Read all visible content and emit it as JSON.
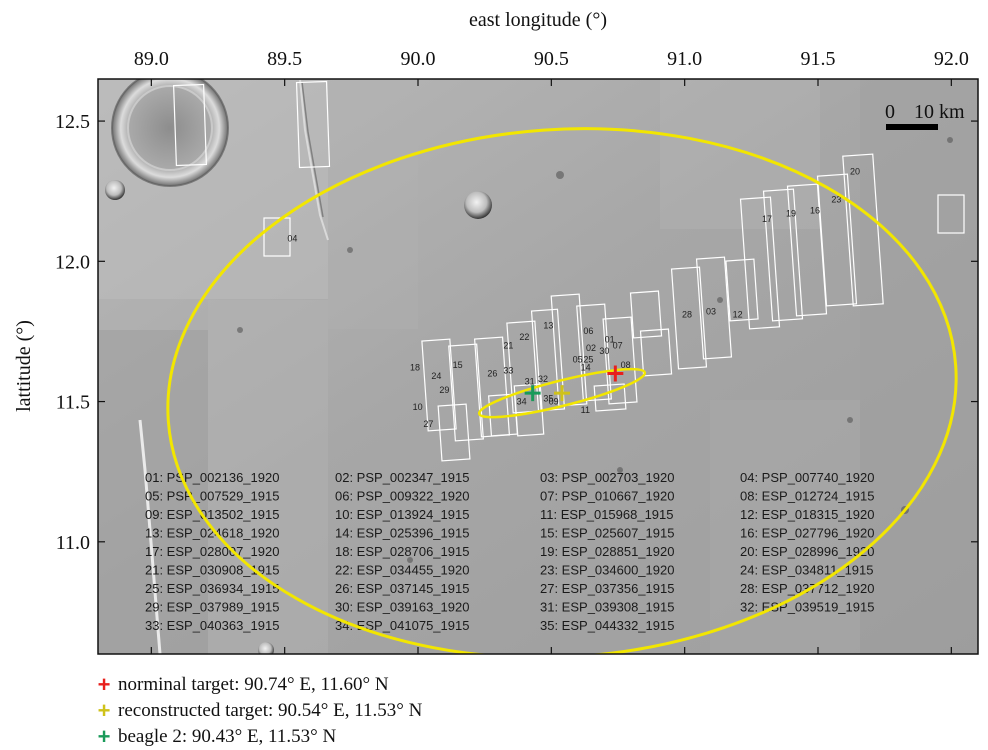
{
  "axes": {
    "xlabel": "east longitude (°)",
    "ylabel": "lattitude (°)",
    "x_ticks": [
      "89.0",
      "89.5",
      "90.0",
      "90.5",
      "91.0",
      "91.5",
      "92.0"
    ],
    "y_ticks": [
      "12.5",
      "12.0",
      "11.5",
      "11.0"
    ],
    "xlim": [
      88.8,
      92.1
    ],
    "ylim": [
      10.6,
      12.65
    ]
  },
  "scale_bar": {
    "label_zero": "0",
    "label_dist": "10 km"
  },
  "colors": {
    "ellipse": "#f2e600",
    "nominal": "#e8201c",
    "reconstructed": "#cfc21a",
    "beagle": "#1a9a5a",
    "footprint": "#ffffff"
  },
  "ellipses": {
    "large": {
      "center_lon": 90.54,
      "center_lat": 11.53,
      "semi_axis_lon_deg": 1.48,
      "semi_axis_lat_deg": 0.94,
      "angle_deg": 4
    },
    "small": {
      "center_lon": 90.54,
      "center_lat": 11.53,
      "semi_axis_lon_deg": 0.32,
      "semi_axis_lat_deg": 0.045,
      "angle_deg": 14
    }
  },
  "markers": [
    {
      "id": "nominal",
      "lon": 90.74,
      "lat": 11.6,
      "text": "norminal target: 90.74° E, 11.60° N"
    },
    {
      "id": "reconstructed",
      "lon": 90.54,
      "lat": 11.53,
      "text": "reconstructed target: 90.54° E, 11.53° N"
    },
    {
      "id": "beagle",
      "lon": 90.43,
      "lat": 11.53,
      "text": "beagle 2: 90.43° E, 11.53° N"
    }
  ],
  "footprint_labels": [
    "01",
    "02",
    "03",
    "04",
    "05",
    "06",
    "07",
    "08",
    "09",
    "10",
    "11",
    "12",
    "13",
    "14",
    "15",
    "16",
    "17",
    "18",
    "19",
    "20",
    "21",
    "22",
    "23",
    "24",
    "25",
    "26",
    "27",
    "28",
    "29",
    "30",
    "31",
    "32",
    "33",
    "34",
    "35"
  ],
  "image_list": [
    [
      "01: PSP_002136_1920",
      "02: PSP_002347_1915",
      "03: PSP_002703_1920",
      "04: PSP_007740_1920"
    ],
    [
      "05: PSP_007529_1915",
      "06: PSP_009322_1920",
      "07: PSP_010667_1920",
      "08: ESP_012724_1915"
    ],
    [
      "09: ESP_013502_1915",
      "10: ESP_013924_1915",
      "11: ESP_015968_1915",
      "12: ESP_018315_1920"
    ],
    [
      "13: ESP_024618_1920",
      "14: ESP_025396_1915",
      "15: ESP_025607_1915",
      "16: ESP_027796_1920"
    ],
    [
      "17: ESP_028007_1920",
      "18: ESP_028706_1915",
      "19: ESP_028851_1920",
      "20: ESP_028996_1920"
    ],
    [
      "21: ESP_030908_1915",
      "22: ESP_034455_1920",
      "23: ESP_034600_1920",
      "24: ESP_034811_1915"
    ],
    [
      "25: ESP_036934_1915",
      "26: ESP_037145_1915",
      "27: ESP_037356_1915",
      "28: ESP_037712_1920"
    ],
    [
      "29: ESP_037989_1915",
      "30: ESP_039163_1920",
      "31: ESP_039308_1915",
      "32: ESP_039519_1915"
    ],
    [
      "33: ESP_040363_1915",
      "34: ESP_041075_1915",
      "35: ESP_044332_1915",
      ""
    ]
  ]
}
